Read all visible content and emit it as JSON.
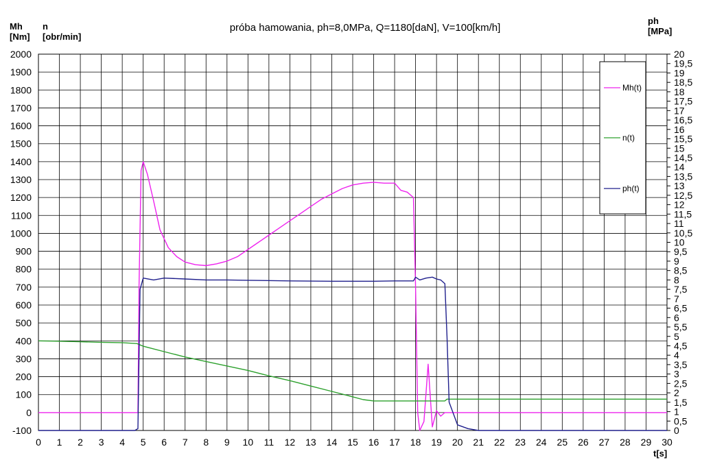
{
  "chart_data": {
    "type": "line",
    "title": "próba hamowania, ph=8,0MPa, Q=1180[daN], V=100[km/h]",
    "left_axis": {
      "label_line1": "Mh",
      "label_line2": "[Nm]",
      "min": -100,
      "max": 2000,
      "step": 100
    },
    "left_axis_2": {
      "label_line1": "n",
      "label_line2": "[obr/min]"
    },
    "right_axis": {
      "label_line1": "ph",
      "label_line2": "[MPa]",
      "min": 0,
      "max": 20,
      "step": 0.5,
      "tick_labels": [
        "0",
        "0,5",
        "1",
        "1,5",
        "2",
        "2,5",
        "3",
        "3,5",
        "4",
        "4,5",
        "5",
        "5,5",
        "6",
        "6,5",
        "7",
        "7,5",
        "8",
        "8,5",
        "9",
        "9,5",
        "10",
        "10,5",
        "11",
        "11,5",
        "12",
        "12,5",
        "13",
        "13,5",
        "14",
        "14,5",
        "15",
        "15,5",
        "16",
        "16,5",
        "17",
        "17,5",
        "18",
        "18,5",
        "19",
        "19,5",
        "20"
      ]
    },
    "x_axis": {
      "label": "t[s]",
      "min": 0,
      "max": 30,
      "step": 1
    },
    "grid": true,
    "legend_position": "top-right",
    "series": [
      {
        "name": "Mh(t)",
        "color": "#ee22ee",
        "axis": "left",
        "x": [
          0,
          4.75,
          4.8,
          4.9,
          5.0,
          5.2,
          5.5,
          5.8,
          6.2,
          6.6,
          7.0,
          7.5,
          8.0,
          8.5,
          9.0,
          9.5,
          10.0,
          10.5,
          11.0,
          11.5,
          12.0,
          12.5,
          13.0,
          13.5,
          14.0,
          14.5,
          15.0,
          15.5,
          16.0,
          16.5,
          17.0,
          17.3,
          17.6,
          17.9,
          18.0,
          18.1,
          18.2,
          18.4,
          18.6,
          18.8,
          19.0,
          19.2,
          19.4,
          30
        ],
        "y": [
          0,
          0,
          700,
          1350,
          1400,
          1330,
          1180,
          1020,
          920,
          870,
          840,
          825,
          820,
          830,
          845,
          870,
          910,
          950,
          990,
          1030,
          1070,
          1110,
          1150,
          1190,
          1220,
          1250,
          1270,
          1280,
          1285,
          1280,
          1280,
          1240,
          1230,
          1200,
          700,
          0,
          -100,
          -50,
          270,
          -80,
          10,
          -20,
          0,
          0
        ]
      },
      {
        "name": "n(t)",
        "color": "#2ca02c",
        "axis": "left",
        "x": [
          0,
          1,
          2,
          3,
          4,
          4.7,
          5.0,
          6,
          7,
          8,
          9,
          10,
          11,
          12,
          13,
          14,
          15,
          15.5,
          16,
          17,
          18,
          19,
          19.4,
          19.5,
          30
        ],
        "y": [
          400,
          398,
          395,
          392,
          390,
          385,
          370,
          340,
          310,
          285,
          260,
          235,
          205,
          178,
          148,
          118,
          88,
          72,
          65,
          65,
          65,
          65,
          65,
          75,
          75
        ]
      },
      {
        "name": "ph(t)",
        "color": "#1f1f8c",
        "axis": "right",
        "x": [
          0,
          4.6,
          4.75,
          4.85,
          5.0,
          5.5,
          6.0,
          7.0,
          8.0,
          9.0,
          10,
          12,
          14,
          16,
          17,
          17.9,
          18.0,
          18.2,
          18.5,
          18.8,
          19.0,
          19.2,
          19.4,
          19.5,
          19.6,
          20.0,
          20.5,
          21.0,
          30
        ],
        "y": [
          0,
          0,
          0.1,
          7.5,
          8.1,
          8.0,
          8.1,
          8.05,
          8.0,
          8.0,
          7.98,
          7.95,
          7.93,
          7.93,
          7.95,
          7.95,
          8.15,
          8.0,
          8.1,
          8.15,
          8.05,
          8.0,
          7.8,
          5.0,
          1.5,
          0.3,
          0.1,
          0.0,
          0.0
        ]
      }
    ]
  }
}
